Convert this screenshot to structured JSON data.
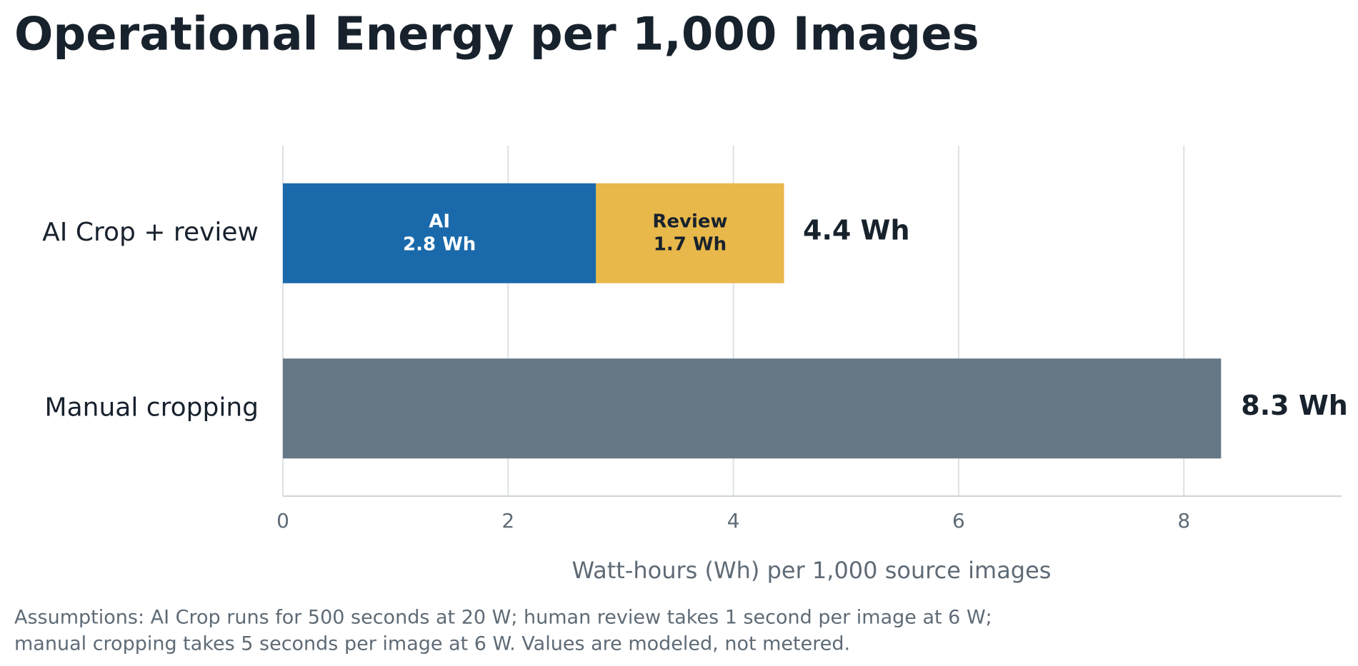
{
  "chart_data": {
    "type": "stacked-barh",
    "title": "Operational Energy per 1,000 Images",
    "categories": [
      "AI Crop + review",
      "Manual cropping"
    ],
    "series": [
      {
        "name": "AI",
        "color": "#1a6aab",
        "text_color": "#ffffff",
        "values": [
          2.78,
          null
        ],
        "value_labels": [
          "2.8 Wh",
          null
        ]
      },
      {
        "name": "Review",
        "color": "#e8b84a",
        "text_color": "#18222d",
        "values": [
          1.67,
          null
        ],
        "value_labels": [
          "1.7 Wh",
          null
        ]
      },
      {
        "color": "#667785",
        "values": [
          null,
          8.33
        ]
      }
    ],
    "totals": [
      4.44,
      8.33
    ],
    "total_labels": [
      "4.4 Wh",
      "8.3 Wh"
    ],
    "xlim": [
      0,
      9.4
    ],
    "xticks": [
      0,
      2,
      4,
      6,
      8
    ],
    "grid": true,
    "x_label": "Watt-hours (Wh) per 1,000 source images",
    "note": [
      "Assumptions: AI Crop runs for 500 seconds at 20 W; human review takes 1 second per image at 6 W;",
      "manual cropping takes 5 seconds per image at 6 W. Values are modeled, not metered."
    ]
  }
}
